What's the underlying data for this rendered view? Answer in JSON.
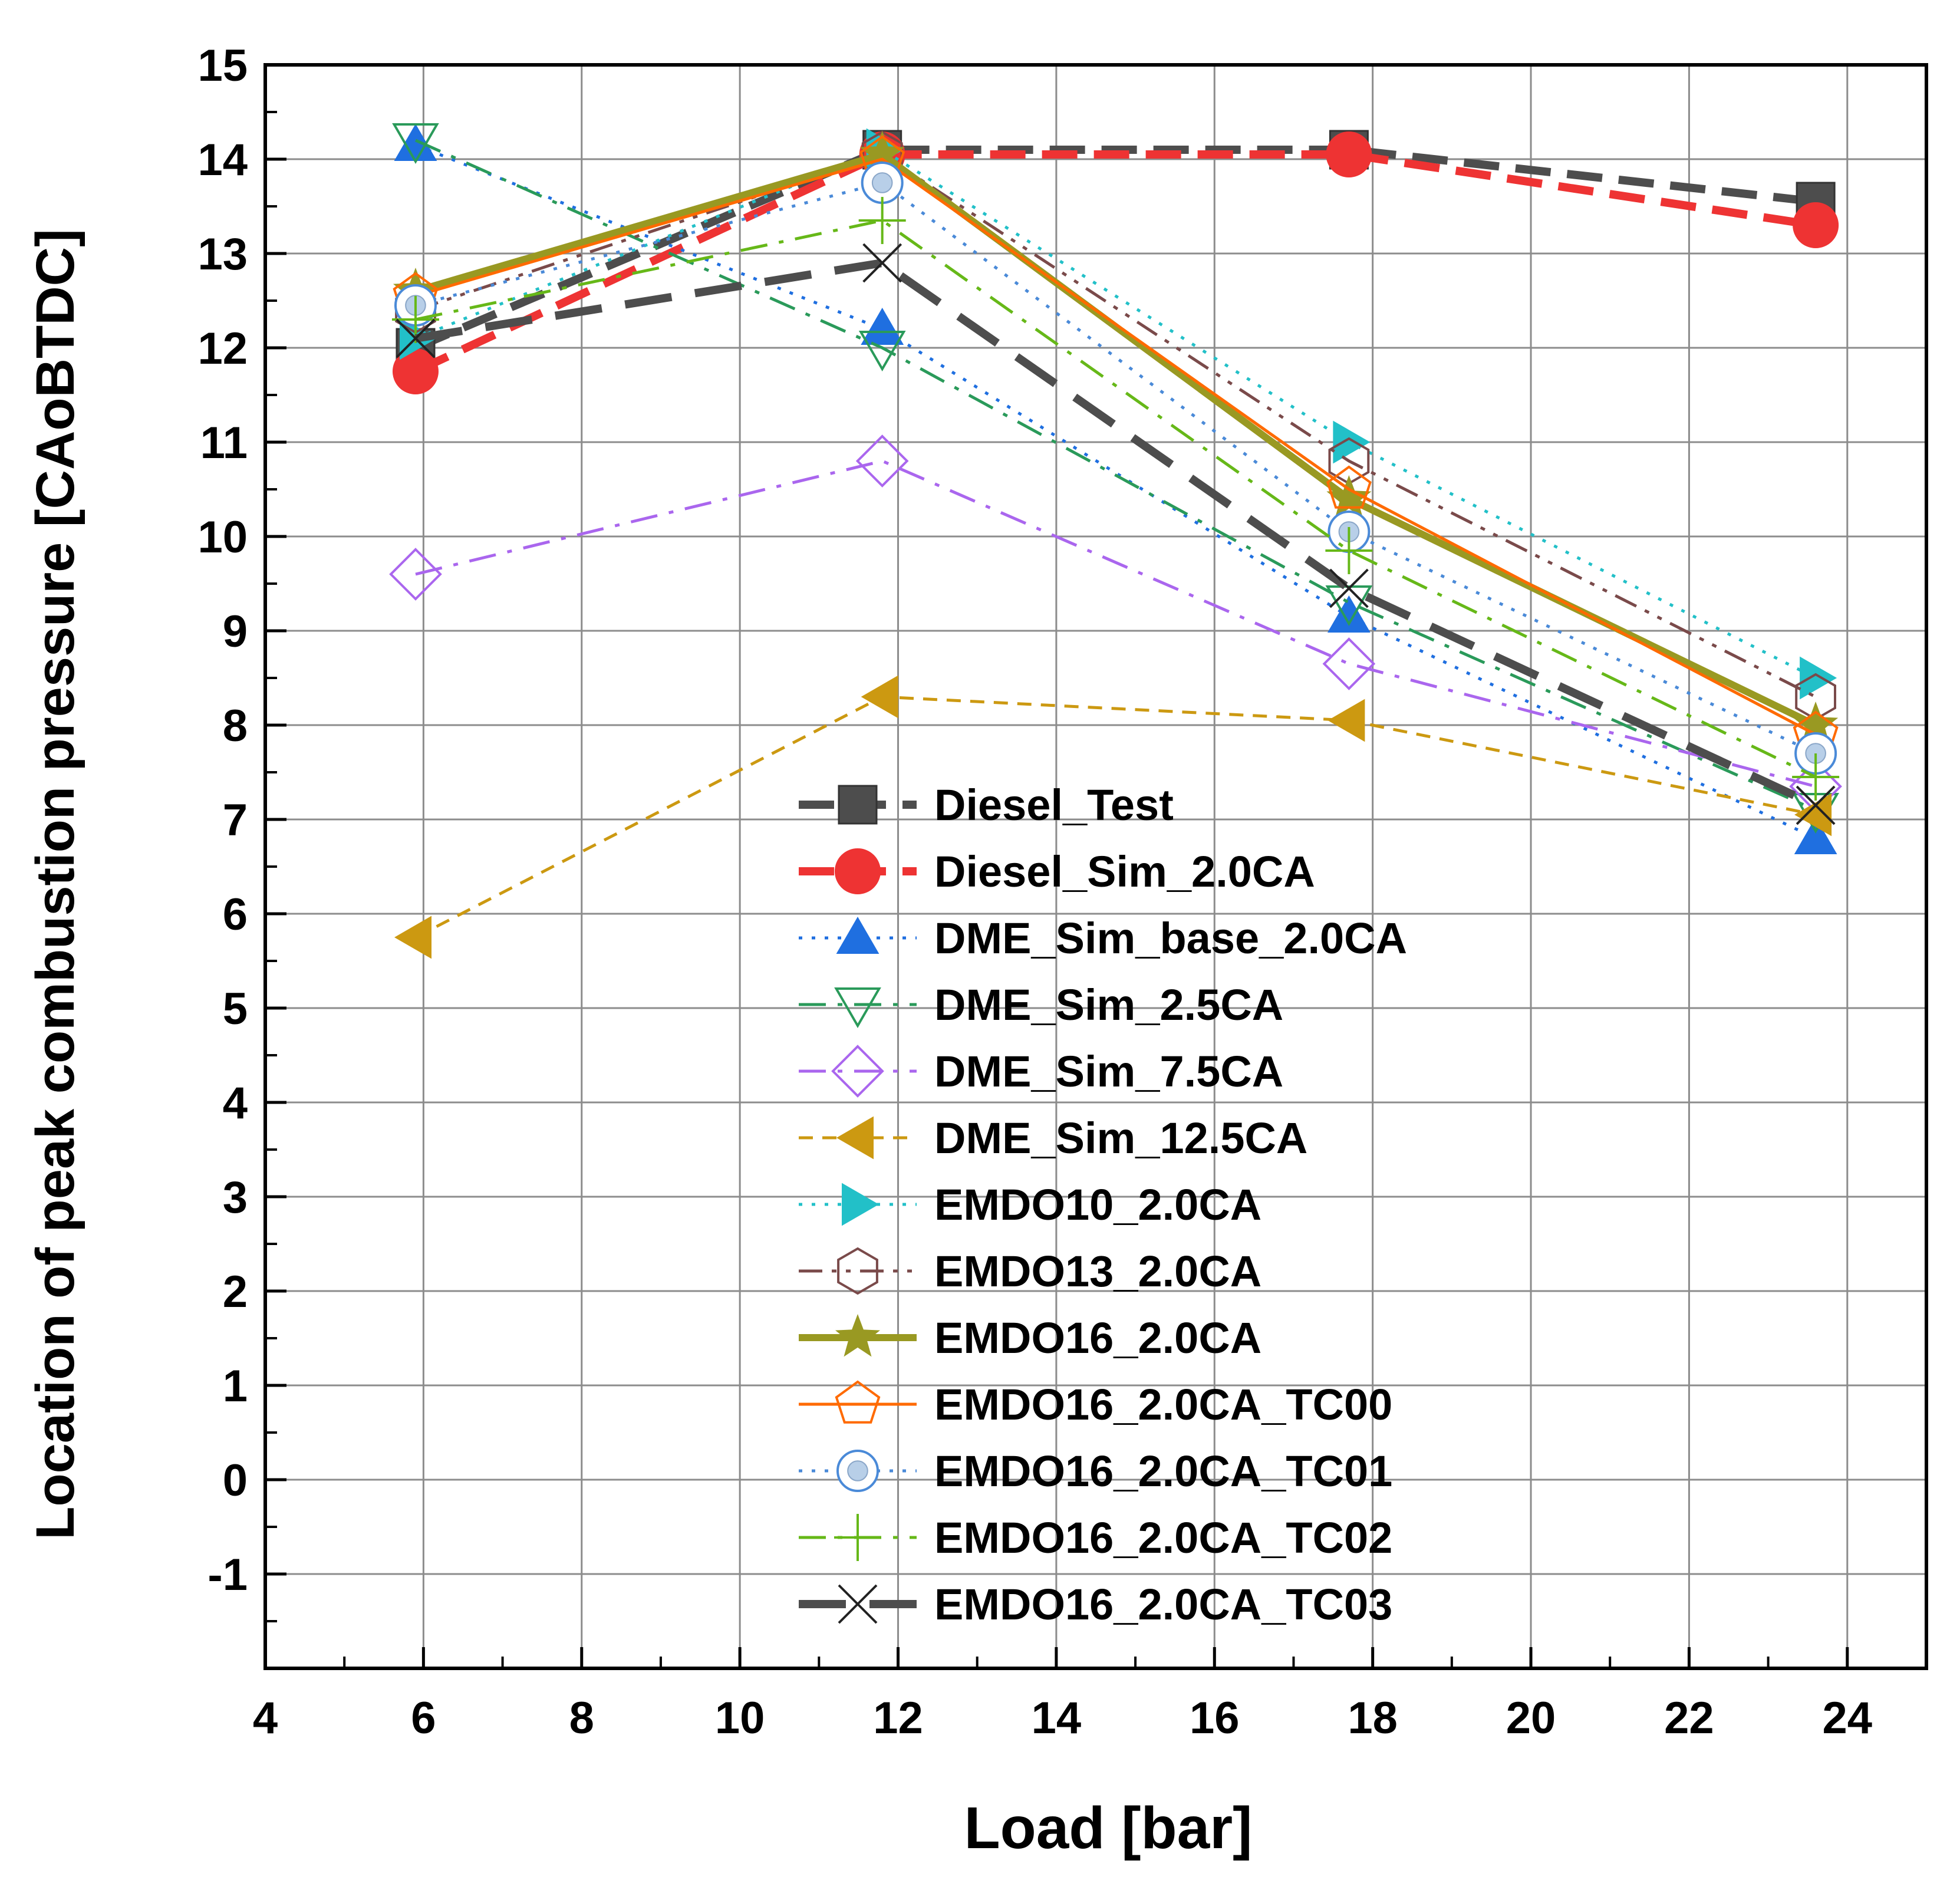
{
  "chart_data": {
    "type": "line",
    "xlabel": "Load [bar]",
    "ylabel": "Location of peak combustion pressure [CAoBTDC]",
    "xlim": [
      4,
      25
    ],
    "ylim": [
      -2,
      15
    ],
    "xticks": [
      4,
      6,
      8,
      10,
      12,
      14,
      16,
      18,
      20,
      22,
      24
    ],
    "yticks": [
      -1,
      0,
      1,
      2,
      3,
      4,
      5,
      6,
      7,
      8,
      9,
      10,
      11,
      12,
      13,
      14,
      15
    ],
    "grid": true,
    "legend_position": "center-bottom",
    "x": [
      5.9,
      11.8,
      17.7,
      23.6
    ],
    "series": [
      {
        "name": "Diesel_Test",
        "values": [
          12.0,
          14.1,
          14.1,
          13.55
        ],
        "color": "#4d4d4d",
        "marker": "square",
        "dash": "dash",
        "width": 14
      },
      {
        "name": "Diesel_Sim_2.0CA",
        "values": [
          11.75,
          14.05,
          14.05,
          13.3
        ],
        "color": "#ee3333",
        "marker": "circle",
        "dash": "dash",
        "width": 14
      },
      {
        "name": "DME_Sim_base_2.0CA",
        "values": [
          14.15,
          12.2,
          9.15,
          6.8
        ],
        "color": "#1f6fe0",
        "marker": "triangle-up",
        "dash": "dot",
        "width": 5
      },
      {
        "name": "DME_Sim_2.5CA",
        "values": [
          14.2,
          12.0,
          9.3,
          7.1
        ],
        "color": "#2a9a5a",
        "marker": "triangle-down",
        "dash": "dashdot",
        "width": 5
      },
      {
        "name": "DME_Sim_7.5CA",
        "values": [
          9.6,
          10.8,
          8.65,
          7.35
        ],
        "color": "#aa66ee",
        "marker": "diamond",
        "dash": "dashdot",
        "width": 5
      },
      {
        "name": "DME_Sim_12.5CA",
        "values": [
          5.75,
          8.3,
          8.05,
          7.05
        ],
        "color": "#cc9911",
        "marker": "triangle-left",
        "dash": "shortdash",
        "width": 5
      },
      {
        "name": "EMDO10_2.0CA",
        "values": [
          12.1,
          14.1,
          11.0,
          8.5
        ],
        "color": "#22c0c8",
        "marker": "triangle-right",
        "dash": "dot",
        "width": 5
      },
      {
        "name": "EMDO13_2.0CA",
        "values": [
          12.4,
          14.05,
          10.8,
          8.3
        ],
        "color": "#7a4a4a",
        "marker": "hexagon",
        "dash": "dashdotdot",
        "width": 5
      },
      {
        "name": "EMDO16_2.0CA",
        "values": [
          12.6,
          14.05,
          10.4,
          8.0
        ],
        "color": "#999922",
        "marker": "star",
        "dash": "solid",
        "width": 12
      },
      {
        "name": "EMDO16_2.0CA_TC00",
        "values": [
          12.55,
          14.0,
          10.5,
          7.9
        ],
        "color": "#ff6a00",
        "marker": "pentagon",
        "dash": "solid",
        "width": 5
      },
      {
        "name": "EMDO16_2.0CA_TC01",
        "values": [
          12.45,
          13.75,
          10.05,
          7.7
        ],
        "color": "#4a8ad8",
        "marker": "circle-sphere",
        "dash": "dot",
        "width": 5
      },
      {
        "name": "EMDO16_2.0CA_TC02",
        "values": [
          12.3,
          13.35,
          9.85,
          7.45
        ],
        "color": "#66b818",
        "marker": "plus",
        "dash": "dashdot",
        "width": 5
      },
      {
        "name": "EMDO16_2.0CA_TC03",
        "values": [
          12.1,
          12.9,
          9.45,
          7.15
        ],
        "color": "#4d4d4d",
        "marker": "cross",
        "dash": "longdash",
        "width": 14
      }
    ]
  }
}
